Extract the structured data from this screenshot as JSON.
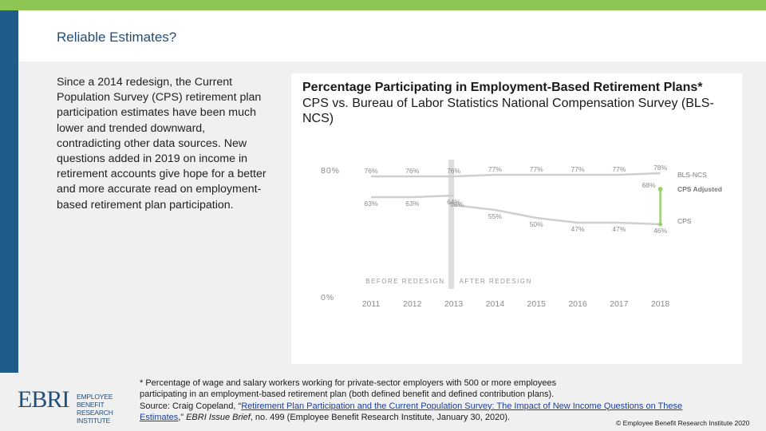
{
  "slide": {
    "title": "Reliable Estimates?",
    "body": "Since a 2014 redesign, the Current Population Survey (CPS) retirement plan participation estimates have been much lower and trended downward, contradicting other data sources. New questions added in 2019 on income in retirement accounts give hope for a better and more accurate read on employment-based retirement plan participation.",
    "chart_title_bold": "Percentage Participating in Employment-Based Retirement Plans*",
    "chart_subtitle": "CPS vs. Bureau of Labor Statistics National Compensation Survey (BLS-NCS)",
    "footnote_line1": "* Percentage of wage and salary workers working for private-sector employers with 500 or more employees",
    "footnote_line2": "participating in an employment-based retirement plan (both defined benefit and defined contribution plans).",
    "source_prefix": "Source: Craig Copeland, “",
    "source_link": "Retirement Plan Participation and the Current Population Survey: The Impact of New Income Questions on These Estimates",
    "source_mid": ",” ",
    "source_journal": "EBRI Issue Brief",
    "source_suffix": ", no. 499 (Employee Benefit Research Institute, January 30, 2020).",
    "copyright": "© Employee Benefit Research Institute 2020",
    "logo_main": "EBRI",
    "logo_sub": "EMPLOYEE BENEFIT RESEARCH INSTITUTE"
  },
  "colors": {
    "accent_green": "#8dc653",
    "brand_blue": "#1f5c8b",
    "line_gray": "#cfcfcf",
    "text_gray": "#8a8a8a"
  },
  "chart_data": {
    "type": "line",
    "x": [
      2011,
      2012,
      2013,
      2014,
      2015,
      2016,
      2017,
      2018
    ],
    "series": [
      {
        "name": "BLS-NCS",
        "values": [
          76,
          76,
          76,
          77,
          77,
          77,
          77,
          78
        ],
        "labels": [
          "76%",
          "76%",
          "76%",
          "77%",
          "77%",
          "77%",
          "77%",
          "78%"
        ]
      },
      {
        "name": "CPS",
        "values": [
          63,
          63,
          64,
          55,
          50,
          47,
          47,
          46
        ],
        "labels": [
          "63%",
          "63%",
          "64%",
          "55%",
          "50%",
          "47%",
          "47%",
          "46%"
        ]
      }
    ],
    "cps_2013_after_redesign": {
      "value": 58,
      "label": "58%"
    },
    "cps_adjusted": {
      "name": "CPS Adjusted",
      "x": 2018,
      "value": 68,
      "label": "68%"
    },
    "ylim": [
      0,
      80
    ],
    "yticks": [
      "0%",
      "80%"
    ],
    "redesign_labels": [
      "BEFORE REDESIGN",
      "AFTER REDESIGN"
    ],
    "legend": [
      "BLS-NCS",
      "CPS Adjusted",
      "CPS"
    ]
  }
}
